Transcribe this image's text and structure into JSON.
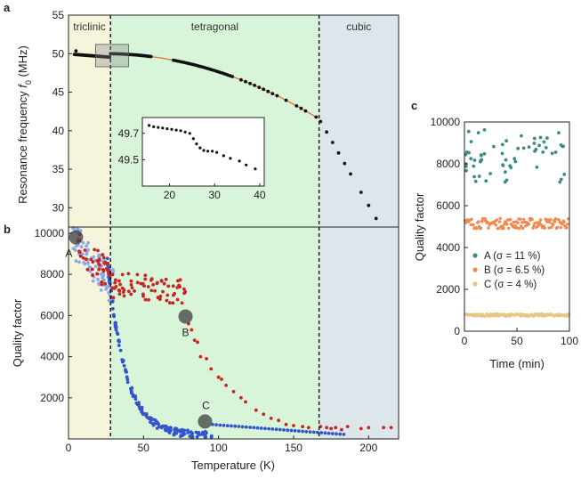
{
  "chart_data": [
    {
      "id": "a",
      "panel_letter": "a",
      "type": "scatter",
      "ylabel_main": "Resonance frequency ",
      "ylabel_sym": "f",
      "ylabel_sub": "0",
      "ylabel_unit": " (MHz)",
      "xlim": [
        0,
        220
      ],
      "ylim": [
        27.5,
        55
      ],
      "yticks": [
        "30",
        "35",
        "40",
        "45",
        "50",
        "55"
      ],
      "phases": [
        {
          "label": "triclinic",
          "from": 0,
          "to": 28,
          "color": "#f5f5dc"
        },
        {
          "label": "tetragonal",
          "from": 28,
          "to": 167,
          "color": "#d9f5d9"
        },
        {
          "label": "cubic",
          "from": 167,
          "to": 220,
          "color": "#dde6ea"
        }
      ],
      "transitions": [
        28,
        167
      ],
      "highlight_box": {
        "x_from": 18,
        "x_to": 40,
        "y_from": 48.3,
        "y_to": 51.2
      },
      "fit_color": "#e07a3c",
      "inset": {
        "xlim": [
          14,
          41
        ],
        "ylim": [
          49.3,
          49.82
        ],
        "xticks": [
          "20",
          "30",
          "40"
        ],
        "yticks": [
          "49.5",
          "49.7"
        ],
        "points": [
          [
            15.5,
            49.76
          ],
          [
            16.5,
            49.75
          ],
          [
            17.5,
            49.745
          ],
          [
            18.5,
            49.74
          ],
          [
            19.5,
            49.735
          ],
          [
            20.5,
            49.73
          ],
          [
            21.5,
            49.725
          ],
          [
            22.5,
            49.72
          ],
          [
            23.5,
            49.71
          ],
          [
            24.5,
            49.7
          ],
          [
            25.3,
            49.66
          ],
          [
            26,
            49.62
          ],
          [
            26.8,
            49.59
          ],
          [
            27.6,
            49.57
          ],
          [
            28.5,
            49.565
          ],
          [
            29.5,
            49.565
          ],
          [
            30.5,
            49.555
          ],
          [
            32,
            49.53
          ],
          [
            33.5,
            49.51
          ],
          [
            35.5,
            49.49
          ],
          [
            37,
            49.46
          ],
          [
            39,
            49.43
          ]
        ]
      }
    },
    {
      "id": "b",
      "panel_letter": "b",
      "type": "scatter",
      "xlabel": "Temperature (K)",
      "ylabel": "Quality factor",
      "xlim": [
        0,
        220
      ],
      "ylim": [
        0,
        10300
      ],
      "xticks": [
        "0",
        "50",
        "100",
        "150",
        "200"
      ],
      "yticks": [
        "2000",
        "4000",
        "6000",
        "8000",
        "10000"
      ],
      "series_colors": {
        "red": "#cc2222",
        "blue": "#3355cc",
        "light_blue": "#8da8e8"
      },
      "markers": [
        {
          "label": "A",
          "x": 5,
          "y": 9800
        },
        {
          "label": "B",
          "x": 78,
          "y": 5950
        },
        {
          "label": "C",
          "x": 91,
          "y": 850
        }
      ]
    },
    {
      "id": "c",
      "panel_letter": "c",
      "type": "scatter",
      "xlabel": "Time (min)",
      "ylabel": "Quality factor",
      "xlim": [
        0,
        100
      ],
      "ylim": [
        0,
        10000
      ],
      "xticks": [
        "0",
        "50",
        "100"
      ],
      "yticks": [
        "0",
        "2000",
        "4000",
        "6000",
        "8000",
        "10000"
      ],
      "series": [
        {
          "name": "A",
          "label": "A (σ = 11 %)",
          "color": "#3d8a8a",
          "mean": 8400
        },
        {
          "name": "B",
          "label": "B (σ = 6.5 %)",
          "color": "#f08a50",
          "mean": 5150
        },
        {
          "name": "C",
          "label": "C (σ = 4 %)",
          "color": "#e6c680",
          "mean": 770
        }
      ]
    }
  ]
}
